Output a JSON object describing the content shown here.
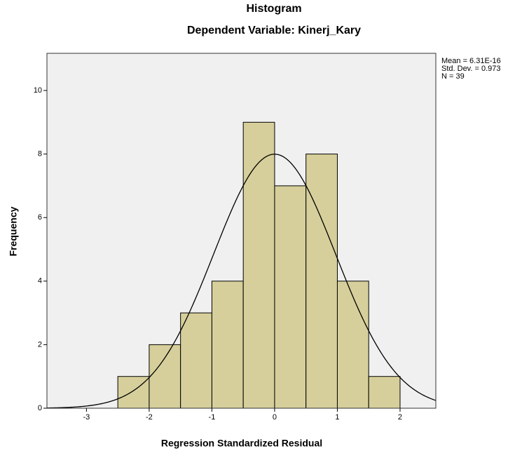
{
  "chart_data": {
    "type": "histogram",
    "title": "Histogram",
    "subtitle": "Dependent Variable: Kinerj_Kary",
    "x_label": "Regression Standardized Residual",
    "y_label": "Frequency",
    "bins": [
      -2.5,
      -2.0,
      -1.5,
      -1.0,
      -0.5,
      0.0,
      0.5,
      1.0,
      1.5,
      2.0
    ],
    "counts": [
      1,
      2,
      3,
      4,
      9,
      7,
      8,
      4,
      1
    ],
    "color": "#d6cf9b",
    "xlim": [
      -3.63,
      2.57
    ],
    "ylim": [
      0,
      11.17
    ],
    "xticks": [
      -3,
      -2,
      -1,
      0,
      1,
      2
    ],
    "yticks": [
      0,
      2,
      4,
      6,
      8,
      10
    ],
    "normal_curve": {
      "mean": 6.31e-16,
      "std": 0.973,
      "n": 39
    },
    "annotations": [
      "Mean = 6.31E-16",
      "Std. Dev. = 0.973",
      "N = 39"
    ]
  }
}
